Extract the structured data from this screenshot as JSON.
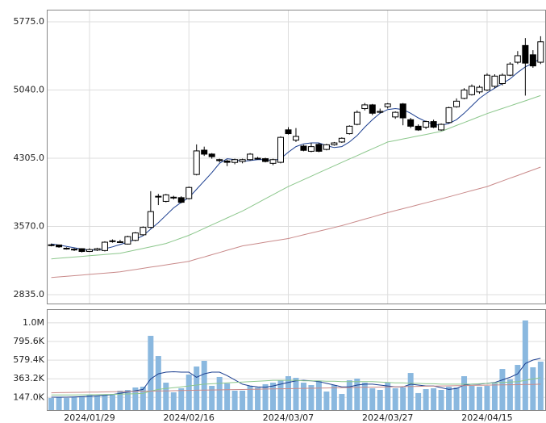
{
  "chart_data": [
    {
      "type": "candlestick",
      "open": [
        3370,
        3370,
        3335,
        3320,
        3330,
        3300,
        3315,
        3310,
        3410,
        3405,
        3380,
        3420,
        3480,
        3560,
        3890,
        3840,
        3880,
        3880,
        3870,
        4130,
        4392,
        4350,
        4290,
        4275,
        4260,
        4270,
        4290,
        4300,
        4300,
        4250,
        4261,
        4611,
        4500,
        4436,
        4380,
        4454,
        4400,
        4450,
        4480,
        4570,
        4670,
        4840,
        4880,
        4800,
        4860,
        4750,
        4890,
        4720,
        4650,
        4640,
        4700,
        4610,
        4690,
        4860,
        4950,
        4990,
        5020,
        5040,
        5080,
        5110,
        5200,
        5340,
        5520,
        5420,
        5340
      ],
      "high": [
        3385,
        3375,
        3345,
        3335,
        3335,
        3335,
        3340,
        3410,
        3430,
        3425,
        3470,
        3510,
        3570,
        3950,
        3920,
        3920,
        3900,
        3895,
        4000,
        4454,
        4430,
        4360,
        4300,
        4290,
        4300,
        4300,
        4360,
        4320,
        4310,
        4300,
        4541,
        4640,
        4630,
        4450,
        4470,
        4470,
        4460,
        4480,
        4530,
        4660,
        4820,
        4900,
        4890,
        4840,
        4900,
        4810,
        4900,
        4740,
        4670,
        4710,
        4720,
        4680,
        4860,
        4950,
        5060,
        5100,
        5090,
        5220,
        5210,
        5220,
        5340,
        5460,
        5600,
        5470,
        5620
      ],
      "low": [
        3355,
        3340,
        3320,
        3305,
        3290,
        3295,
        3305,
        3300,
        3395,
        3395,
        3375,
        3410,
        3470,
        3550,
        3800,
        3830,
        3860,
        3820,
        3860,
        4120,
        4330,
        4300,
        4260,
        4220,
        4240,
        4250,
        4280,
        4290,
        4260,
        4230,
        4250,
        4560,
        4480,
        4380,
        4370,
        4370,
        4390,
        4440,
        4470,
        4560,
        4660,
        4820,
        4770,
        4790,
        4840,
        4730,
        4660,
        4630,
        4600,
        4620,
        4630,
        4600,
        4680,
        4850,
        4940,
        4980,
        5000,
        5030,
        5060,
        5090,
        5190,
        5320,
        4980,
        5280,
        5320
      ],
      "close": [
        3372,
        3350,
        3330,
        3325,
        3300,
        3320,
        3330,
        3400,
        3415,
        3400,
        3460,
        3500,
        3560,
        3730,
        3895,
        3910,
        3885,
        3830,
        3990,
        4384,
        4349,
        4322,
        4279,
        4261,
        4290,
        4290,
        4349,
        4305,
        4270,
        4290,
        4530,
        4570,
        4540,
        4390,
        4430,
        4380,
        4450,
        4470,
        4520,
        4650,
        4800,
        4880,
        4790,
        4810,
        4890,
        4800,
        4740,
        4650,
        4610,
        4700,
        4640,
        4670,
        4850,
        4920,
        5040,
        5080,
        5070,
        5200,
        5190,
        5200,
        5320,
        5410,
        5330,
        5300,
        5560
      ],
      "series": [
        {
          "color": "#1a3d8f",
          "values": [
            3380,
            3370,
            3355,
            3340,
            3325,
            3315,
            3315,
            3330,
            3350,
            3375,
            3400,
            3430,
            3470,
            3540,
            3610,
            3690,
            3770,
            3830,
            3880,
            3970,
            4060,
            4150,
            4250,
            4300,
            4290,
            4270,
            4280,
            4290,
            4290,
            4280,
            4300,
            4370,
            4430,
            4460,
            4470,
            4470,
            4440,
            4420,
            4430,
            4480,
            4550,
            4640,
            4720,
            4790,
            4830,
            4840,
            4830,
            4790,
            4740,
            4700,
            4670,
            4660,
            4680,
            4720,
            4790,
            4870,
            4950,
            5010,
            5060,
            5110,
            5160,
            5230,
            5290,
            5330,
            5380
          ]
        },
        {
          "color": "#8cc78c",
          "values": [
            3220,
            3227,
            3234,
            3240,
            3247,
            3254,
            3261,
            3267,
            3274,
            3281,
            3298,
            3316,
            3333,
            3351,
            3368,
            3386,
            3415,
            3445,
            3474,
            3511,
            3549,
            3586,
            3624,
            3661,
            3699,
            3736,
            3780,
            3824,
            3868,
            3912,
            3956,
            4000,
            4037,
            4074,
            4111,
            4149,
            4186,
            4223,
            4260,
            4297,
            4333,
            4370,
            4407,
            4443,
            4480,
            4496,
            4513,
            4529,
            4545,
            4561,
            4578,
            4594,
            4626,
            4658,
            4690,
            4722,
            4754,
            4786,
            4814,
            4841,
            4869,
            4897,
            4924,
            4952,
            4980
          ]
        },
        {
          "color": "#c98a8a",
          "values": [
            3019,
            3026,
            3033,
            3039,
            3046,
            3053,
            3060,
            3066,
            3073,
            3080,
            3093,
            3105,
            3118,
            3131,
            3143,
            3156,
            3169,
            3181,
            3194,
            3218,
            3241,
            3265,
            3289,
            3313,
            3336,
            3360,
            3373,
            3386,
            3400,
            3413,
            3426,
            3439,
            3459,
            3479,
            3499,
            3519,
            3539,
            3559,
            3579,
            3602,
            3626,
            3649,
            3672,
            3696,
            3719,
            3740,
            3761,
            3782,
            3804,
            3825,
            3846,
            3867,
            3889,
            3911,
            3934,
            3956,
            3978,
            4000,
            4030,
            4060,
            4090,
            4119,
            4149,
            4179,
            4209
          ]
        }
      ],
      "ylim": [
        2739,
        5906
      ],
      "yticks": [
        {
          "value": 2835,
          "label": "2835.0"
        },
        {
          "value": 3570,
          "label": "3570.0"
        },
        {
          "value": 4305,
          "label": "4305.0"
        },
        {
          "value": 5040,
          "label": "5040.0"
        },
        {
          "value": 5775,
          "label": "5775.0"
        }
      ],
      "grid": true
    },
    {
      "type": "bar",
      "categories": [
        null,
        null,
        null,
        null,
        null,
        "2024/01/29",
        null,
        null,
        null,
        null,
        null,
        null,
        null,
        null,
        null,
        null,
        null,
        null,
        "2024/02/16",
        null,
        null,
        null,
        null,
        null,
        null,
        null,
        null,
        null,
        null,
        null,
        null,
        "2024/03/07",
        null,
        null,
        null,
        null,
        null,
        null,
        null,
        null,
        null,
        null,
        null,
        null,
        "2024/03/27",
        null,
        null,
        null,
        null,
        null,
        null,
        null,
        null,
        null,
        null,
        null,
        null,
        "2024/04/15",
        null,
        null,
        null,
        null,
        null,
        null,
        null
      ],
      "color": "#8ab8df",
      "values": [
        140000,
        150000,
        140000,
        150000,
        160000,
        178000,
        168000,
        178000,
        187000,
        225000,
        234000,
        262000,
        271000,
        861000,
        627000,
        318000,
        206000,
        253000,
        412000,
        505000,
        571000,
        281000,
        384000,
        309000,
        225000,
        225000,
        281000,
        262000,
        300000,
        318000,
        346000,
        393000,
        374000,
        318000,
        290000,
        337000,
        215000,
        290000,
        187000,
        346000,
        365000,
        318000,
        253000,
        234000,
        318000,
        253000,
        262000,
        430000,
        197000,
        243000,
        253000,
        234000,
        271000,
        262000,
        393000,
        281000,
        271000,
        281000,
        309000,
        477000,
        356000,
        524000,
        1039000,
        496000,
        562000
      ],
      "series": [
        {
          "color": "#1a3d8f",
          "values": [
            150000,
            150000,
            150000,
            152000,
            155000,
            160000,
            165000,
            170000,
            180000,
            195000,
            210000,
            225000,
            240000,
            360000,
            420000,
            440000,
            445000,
            440000,
            440000,
            380000,
            420000,
            440000,
            440000,
            400000,
            350000,
            300000,
            280000,
            270000,
            265000,
            280000,
            300000,
            320000,
            340000,
            345000,
            340000,
            330000,
            310000,
            290000,
            270000,
            270000,
            290000,
            300000,
            300000,
            290000,
            280000,
            270000,
            270000,
            300000,
            290000,
            280000,
            280000,
            260000,
            240000,
            250000,
            290000,
            300000,
            300000,
            310000,
            320000,
            350000,
            380000,
            420000,
            540000,
            580000,
            600000
          ]
        },
        {
          "color": "#8cc78c",
          "values": [
            175000,
            175000,
            176000,
            176000,
            177000,
            178000,
            179000,
            180000,
            182000,
            184000,
            187000,
            190000,
            195000,
            220000,
            240000,
            250000,
            260000,
            270000,
            280000,
            290000,
            300000,
            305000,
            310000,
            315000,
            320000,
            325000,
            330000,
            335000,
            340000,
            345000,
            345000,
            345000,
            345000,
            340000,
            340000,
            340000,
            335000,
            335000,
            330000,
            330000,
            330000,
            330000,
            330000,
            325000,
            320000,
            315000,
            315000,
            310000,
            310000,
            305000,
            305000,
            300000,
            300000,
            300000,
            300000,
            300000,
            305000,
            310000,
            315000,
            320000,
            325000,
            330000,
            345000,
            360000,
            375000
          ]
        },
        {
          "color": "#c98a8a",
          "values": [
            200000,
            202000,
            203000,
            205000,
            206000,
            208000,
            209000,
            211000,
            213000,
            214000,
            216000,
            217000,
            219000,
            220000,
            222000,
            223000,
            225000,
            227000,
            228000,
            230000,
            231000,
            233000,
            234000,
            236000,
            238000,
            239000,
            241000,
            242000,
            244000,
            245000,
            247000,
            248000,
            250000,
            252000,
            253000,
            255000,
            256000,
            258000,
            259000,
            261000,
            263000,
            264000,
            266000,
            267000,
            269000,
            270000,
            272000,
            273000,
            275000,
            277000,
            278000,
            280000,
            281000,
            283000,
            284000,
            286000,
            288000,
            289000,
            291000,
            292000,
            294000,
            295000,
            297000,
            298000,
            300000
          ]
        }
      ],
      "ylim": [
        0,
        1170000
      ],
      "yticks": [
        {
          "value": 147000,
          "label": "147.0K"
        },
        {
          "value": 363200,
          "label": "363.2K"
        },
        {
          "value": 579400,
          "label": "579.4K"
        },
        {
          "value": 795600,
          "label": "795.6K"
        },
        {
          "value": 1011800,
          "label": "1.0M"
        }
      ],
      "grid": true
    }
  ]
}
